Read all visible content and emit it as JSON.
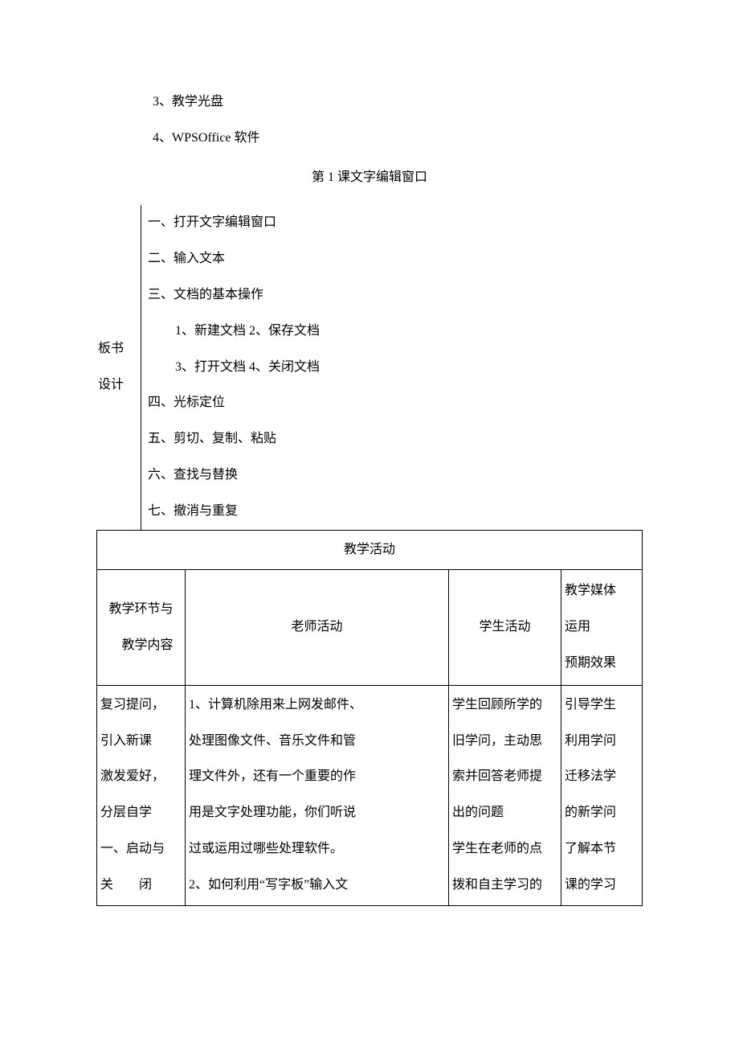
{
  "top_list": {
    "item3": "3、教学光盘",
    "item4": "4、WPSOffice 软件"
  },
  "section_title": "第 1 课文字编辑窗口",
  "board": {
    "label_line1": "板书",
    "label_line2": "设计",
    "outline": {
      "i1": "一、打开文字编辑窗口",
      "i2": "二、输入文本",
      "i3": "三、文档的基本操作",
      "i3_sub1": "1、新建文档 2、保存文档",
      "i3_sub2": "3、打开文档 4、关闭文档",
      "i4": "四、光标定位",
      "i5": "五、剪切、复制、粘贴",
      "i6": "六、查找与替换",
      "i7": "七、撤消与重复"
    }
  },
  "activity": {
    "header": "教学活动",
    "cols": {
      "c1_line1": "教学环节与",
      "c1_line2": "教学内容",
      "c2": "老师活动",
      "c3": "学生活动",
      "c4_line1": "教学媒体",
      "c4_line2": "运用",
      "c4_line3": "预期效果"
    },
    "body": {
      "col1": {
        "l1": "复习提问，",
        "l2": "引入新课",
        "l3": "激发爱好，",
        "l4": "分层自学",
        "l5": "一、启动与",
        "l6_pre": "关",
        "l6_post": "闭"
      },
      "col2": {
        "l1": "1、计算机除用来上网发邮件、",
        "l2": "处理图像文件、音乐文件和管",
        "l3": "理文件外，还有一个重要的作",
        "l4": "用是文字处理功能，你们听说",
        "l5": "过或运用过哪些处理软件。",
        "l6": "2、如何利用“写字板”输入文"
      },
      "col3": {
        "l1": "学生回顾所学的",
        "l2": "旧学问，主动思",
        "l3": "索并回答老师提",
        "l4": "出的问题",
        "l5": "学生在老师的点",
        "l6": "拨和自主学习的"
      },
      "col4": {
        "l1": "引导学生",
        "l2": "利用学问",
        "l3": "迁移法学",
        "l4": "的新学问",
        "l5": "了解本节",
        "l6": "课的学习"
      }
    }
  }
}
